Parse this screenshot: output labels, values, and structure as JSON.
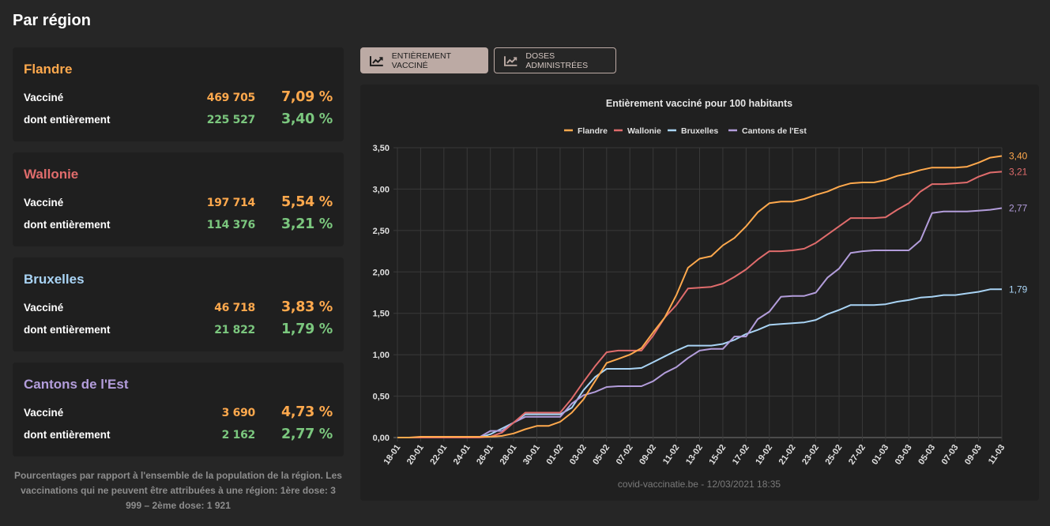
{
  "page": {
    "title": "Par région"
  },
  "regions": [
    {
      "name": "Flandre",
      "color": "#ffa94d",
      "rows": [
        {
          "label": "Vacciné",
          "count": "469 705",
          "pct": "7,09 %"
        },
        {
          "label": "dont entièrement",
          "count": "225 527",
          "pct": "3,40 %"
        }
      ]
    },
    {
      "name": "Wallonie",
      "color": "#e06c6c",
      "rows": [
        {
          "label": "Vacciné",
          "count": "197 714",
          "pct": "5,54 %"
        },
        {
          "label": "dont entièrement",
          "count": "114 376",
          "pct": "3,21 %"
        }
      ]
    },
    {
      "name": "Bruxelles",
      "color": "#a9d4f5",
      "rows": [
        {
          "label": "Vacciné",
          "count": "46 718",
          "pct": "3,83 %"
        },
        {
          "label": "dont entièrement",
          "count": "21 822",
          "pct": "1,79 %"
        }
      ]
    },
    {
      "name": "Cantons de l'Est",
      "color": "#b39ddb",
      "rows": [
        {
          "label": "Vacciné",
          "count": "3 690",
          "pct": "4,73 %"
        },
        {
          "label": "dont entièrement",
          "count": "2 162",
          "pct": "2,77 %"
        }
      ]
    }
  ],
  "footnote": "Pourcentages par rapport à l'ensemble de la population de la région. Les vaccinations qui ne peuvent être attribuées à une région: 1ère dose: 3 999 – 2ème dose: 1 921",
  "tabs": [
    {
      "label": "ENTIÈREMENT VACCINÉ",
      "icon": "chart-line-icon",
      "active": true
    },
    {
      "label": "DOSES ADMINISTRÉES",
      "icon": "chart-line-icon",
      "active": false
    }
  ],
  "chart_data": {
    "type": "line",
    "title": "Entièrement vacciné pour 100 habitants",
    "source": "covid-vaccinatie.be - 12/03/2021 18:35",
    "xlabel": "",
    "ylabel": "",
    "ylim": [
      0,
      3.5
    ],
    "yticks": [
      "0,00",
      "0,50",
      "1,00",
      "1,50",
      "2,00",
      "2,50",
      "3,00",
      "3,50"
    ],
    "grid": true,
    "legend": "top-center",
    "x": [
      "18-01",
      "19-01",
      "20-01",
      "21-01",
      "22-01",
      "23-01",
      "24-01",
      "25-01",
      "26-01",
      "27-01",
      "28-01",
      "29-01",
      "30-01",
      "31-01",
      "01-02",
      "02-02",
      "03-02",
      "04-02",
      "05-02",
      "06-02",
      "07-02",
      "08-02",
      "09-02",
      "10-02",
      "11-02",
      "12-02",
      "13-02",
      "14-02",
      "15-02",
      "16-02",
      "17-02",
      "18-02",
      "19-02",
      "20-02",
      "21-02",
      "22-02",
      "23-02",
      "24-02",
      "25-02",
      "26-02",
      "27-02",
      "28-02",
      "01-03",
      "02-03",
      "03-03",
      "04-03",
      "05-03",
      "06-03",
      "07-03",
      "08-03",
      "09-03",
      "10-03",
      "11-03"
    ],
    "xtick_labels": [
      "18-01",
      "20-01",
      "22-01",
      "24-01",
      "26-01",
      "28-01",
      "30-01",
      "01-02",
      "03-02",
      "05-02",
      "07-02",
      "09-02",
      "11-02",
      "13-02",
      "15-02",
      "17-02",
      "19-02",
      "21-02",
      "23-02",
      "25-02",
      "27-02",
      "01-03",
      "03-03",
      "05-03",
      "07-03",
      "09-03",
      "11-03"
    ],
    "series": [
      {
        "name": "Flandre",
        "color": "#ffa94d",
        "end_label": "3,40",
        "values": [
          0,
          0,
          0.01,
          0.01,
          0.01,
          0.01,
          0.01,
          0.01,
          0.01,
          0.02,
          0.05,
          0.1,
          0.14,
          0.14,
          0.19,
          0.3,
          0.46,
          0.68,
          0.9,
          0.95,
          1.0,
          1.08,
          1.27,
          1.45,
          1.72,
          2.05,
          2.16,
          2.19,
          2.32,
          2.41,
          2.55,
          2.72,
          2.83,
          2.85,
          2.85,
          2.88,
          2.93,
          2.97,
          3.03,
          3.07,
          3.08,
          3.08,
          3.11,
          3.16,
          3.19,
          3.23,
          3.26,
          3.26,
          3.26,
          3.27,
          3.32,
          3.38,
          3.4
        ]
      },
      {
        "name": "Wallonie",
        "color": "#e06c6c",
        "end_label": "3,21",
        "values": [
          0,
          0,
          0,
          0,
          0,
          0,
          0,
          0,
          0.01,
          0.06,
          0.18,
          0.3,
          0.3,
          0.3,
          0.3,
          0.47,
          0.67,
          0.86,
          1.03,
          1.05,
          1.05,
          1.05,
          1.23,
          1.45,
          1.6,
          1.8,
          1.81,
          1.82,
          1.86,
          1.94,
          2.03,
          2.15,
          2.25,
          2.25,
          2.26,
          2.28,
          2.35,
          2.45,
          2.55,
          2.65,
          2.65,
          2.65,
          2.66,
          2.75,
          2.83,
          2.97,
          3.06,
          3.06,
          3.07,
          3.08,
          3.15,
          3.2,
          3.21
        ]
      },
      {
        "name": "Bruxelles",
        "color": "#a9d4f5",
        "end_label": "1,79",
        "values": [
          0,
          0,
          0,
          0,
          0,
          0,
          0,
          0,
          0.04,
          0.11,
          0.18,
          0.28,
          0.28,
          0.28,
          0.28,
          0.36,
          0.57,
          0.73,
          0.83,
          0.83,
          0.83,
          0.84,
          0.91,
          0.98,
          1.05,
          1.11,
          1.11,
          1.11,
          1.13,
          1.18,
          1.25,
          1.3,
          1.36,
          1.37,
          1.38,
          1.39,
          1.42,
          1.49,
          1.54,
          1.6,
          1.6,
          1.6,
          1.61,
          1.64,
          1.66,
          1.69,
          1.7,
          1.72,
          1.72,
          1.74,
          1.76,
          1.79,
          1.79
        ]
      },
      {
        "name": "Cantons de l'Est",
        "color": "#b39ddb",
        "end_label": "2,77",
        "values": [
          0,
          0,
          0,
          0,
          0,
          0,
          0,
          0,
          0.08,
          0.08,
          0.18,
          0.25,
          0.25,
          0.25,
          0.25,
          0.41,
          0.51,
          0.55,
          0.61,
          0.62,
          0.62,
          0.62,
          0.68,
          0.78,
          0.85,
          0.96,
          1.05,
          1.07,
          1.07,
          1.22,
          1.22,
          1.43,
          1.52,
          1.7,
          1.71,
          1.71,
          1.75,
          1.93,
          2.04,
          2.23,
          2.25,
          2.26,
          2.26,
          2.26,
          2.26,
          2.38,
          2.71,
          2.73,
          2.73,
          2.73,
          2.74,
          2.75,
          2.77
        ]
      }
    ]
  }
}
